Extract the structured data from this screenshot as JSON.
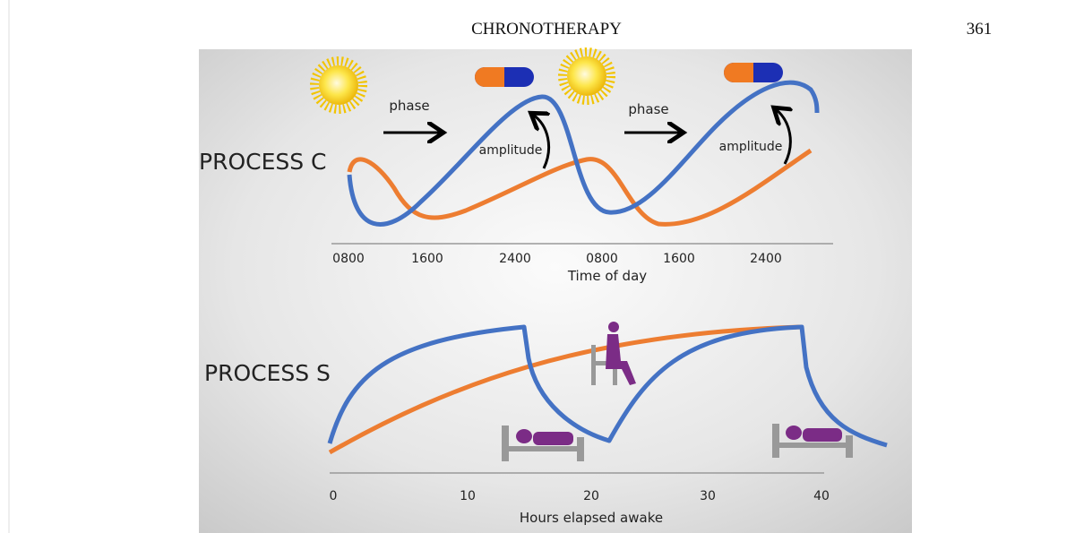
{
  "header": {
    "title": "CHRONOTHERAPY",
    "page": "361"
  },
  "figure": {
    "process_c": {
      "label": "PROCESS C",
      "annotations": [
        "phase",
        "amplitude",
        "phase",
        "amplitude"
      ],
      "x_ticks": [
        "0800",
        "1600",
        "2400",
        "0800",
        "1600",
        "2400"
      ],
      "x_label": "Time of day"
    },
    "process_s": {
      "label": "PROCESS S",
      "x_ticks": [
        "0",
        "10",
        "20",
        "30",
        "40"
      ],
      "x_label": "Hours elapsed awake"
    }
  }
}
